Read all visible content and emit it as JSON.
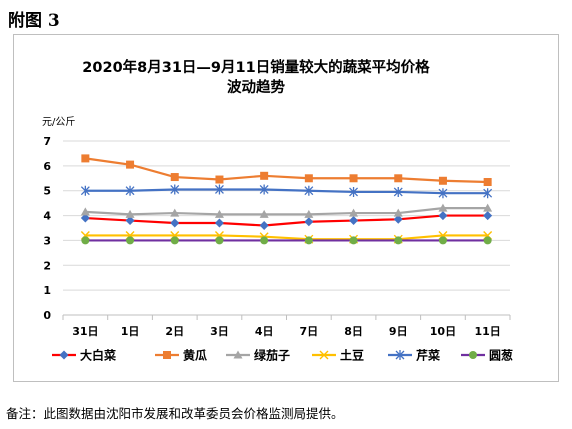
{
  "figure_label": "附图 3",
  "note": "备注：此图数据由沈阳市发展和改革委员会价格监测局提供。",
  "chart_data": {
    "type": "line",
    "title": "2020年8月31日—9月11日销量较大的蔬菜平均价格",
    "subtitle": "波动趋势",
    "ylabel": "元/公斤",
    "xlabel": "",
    "ylim": [
      0,
      7
    ],
    "yticks": [
      "0",
      "1",
      "2",
      "3",
      "4",
      "5",
      "6",
      "7"
    ],
    "categories": [
      "31日",
      "1日",
      "2日",
      "3日",
      "4日",
      "7日",
      "8日",
      "9日",
      "10日",
      "11日"
    ],
    "grid": true,
    "legend": "bottom",
    "series": [
      {
        "name": "大白菜",
        "color": "#ff0000",
        "marker": "diamond",
        "marker_color": "#4472c4",
        "values": [
          3.9,
          3.8,
          3.7,
          3.7,
          3.6,
          3.75,
          3.8,
          3.85,
          4.0,
          4.0
        ]
      },
      {
        "name": "黄瓜",
        "color": "#ed7d31",
        "marker": "square",
        "marker_color": "#ed7d31",
        "values": [
          6.3,
          6.05,
          5.55,
          5.45,
          5.6,
          5.5,
          5.5,
          5.5,
          5.4,
          5.35
        ]
      },
      {
        "name": "绿茄子",
        "color": "#a5a5a5",
        "marker": "triangle",
        "marker_color": "#a5a5a5",
        "values": [
          4.15,
          4.05,
          4.1,
          4.05,
          4.05,
          4.05,
          4.1,
          4.1,
          4.3,
          4.3
        ]
      },
      {
        "name": "土豆",
        "color": "#ffc000",
        "marker": "x",
        "marker_color": "#ffc000",
        "values": [
          3.2,
          3.2,
          3.2,
          3.2,
          3.15,
          3.05,
          3.05,
          3.05,
          3.2,
          3.2
        ]
      },
      {
        "name": "芹菜",
        "color": "#4472c4",
        "marker": "star",
        "marker_color": "#4472c4",
        "values": [
          5.0,
          5.0,
          5.05,
          5.05,
          5.05,
          5.0,
          4.95,
          4.95,
          4.9,
          4.9
        ]
      },
      {
        "name": "圆葱",
        "color": "#7030a0",
        "marker": "circle",
        "marker_color": "#70ad47",
        "values": [
          3.0,
          3.0,
          3.0,
          3.0,
          3.0,
          3.0,
          3.0,
          3.0,
          3.0,
          3.0
        ]
      }
    ]
  }
}
